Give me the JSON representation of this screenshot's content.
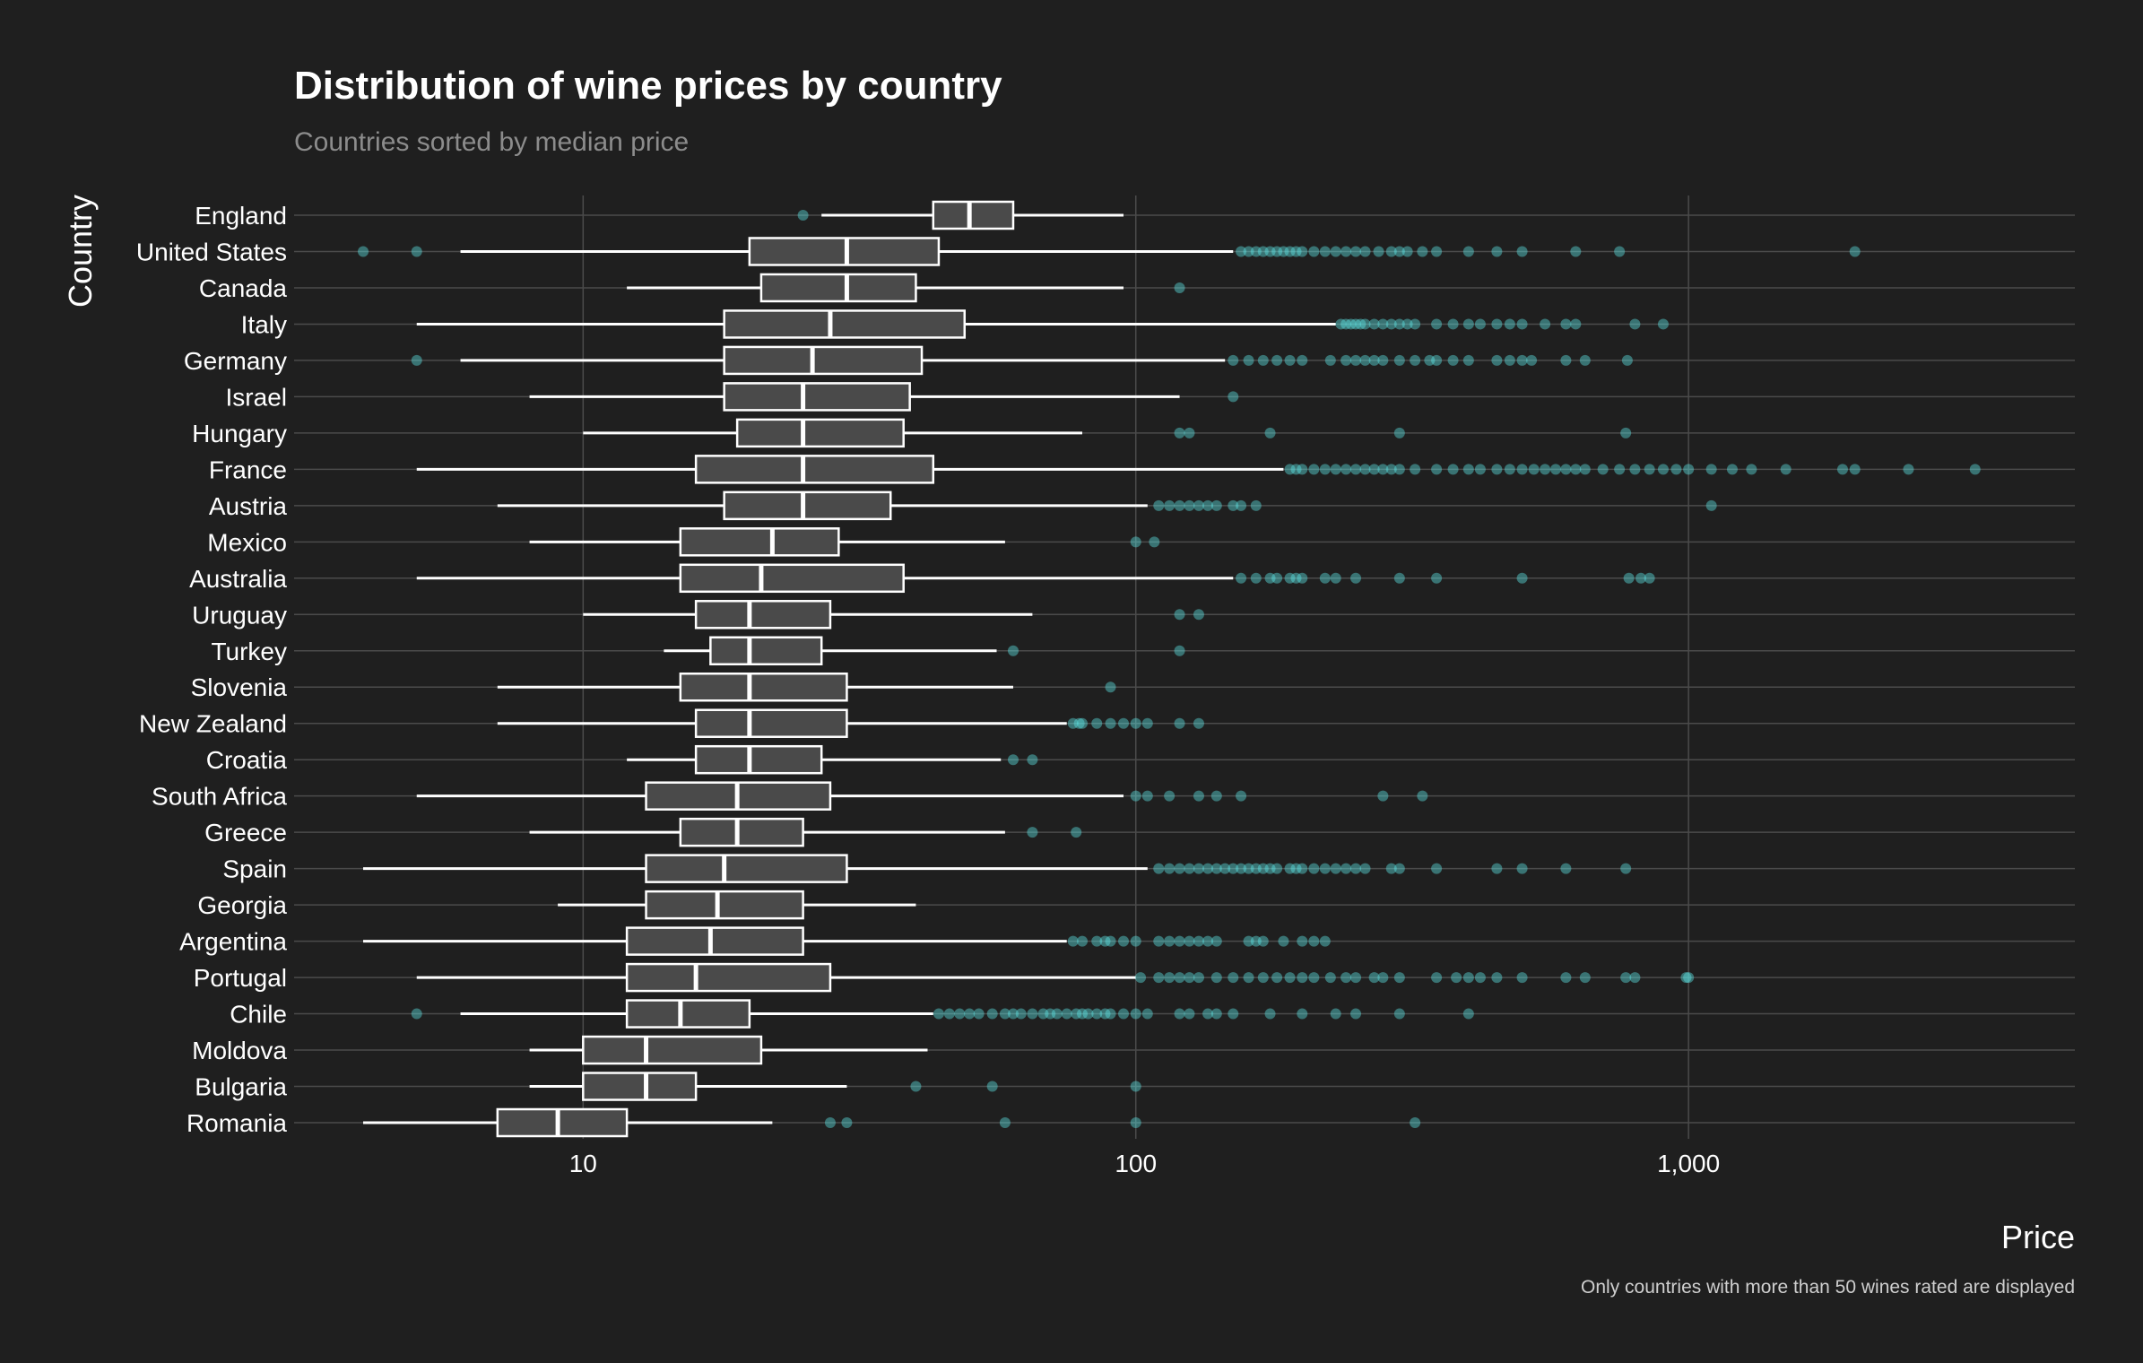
{
  "chart_data": {
    "type": "boxplot",
    "orientation": "horizontal",
    "title": "Distribution of wine prices by country",
    "subtitle": "Countries sorted by median price",
    "xlabel": "Price",
    "ylabel": "Country",
    "caption": "Only countries with more than 50 wines rated are displayed",
    "x_scale": "log10",
    "xlim": [
      3,
      5000
    ],
    "x_ticks": [
      10,
      100,
      1000
    ],
    "x_tick_labels": [
      "10",
      "100",
      "1,000"
    ],
    "grid": true,
    "colors": {
      "background": "#1f1f1f",
      "box_fill": "#4a4a4a",
      "box_stroke": "#ffffff",
      "outlier": "#5ee6e6",
      "grid": "#4b4b4b"
    },
    "series": [
      {
        "country": "England",
        "whisker_low": 27,
        "q1": 43,
        "median": 50,
        "q3": 60,
        "whisker_high": 95,
        "outliers": [
          25
        ]
      },
      {
        "country": "United States",
        "whisker_low": 6,
        "q1": 20,
        "median": 30,
        "q3": 44,
        "whisker_high": 150,
        "outliers": [
          4,
          5,
          155,
          160,
          165,
          170,
          175,
          180,
          185,
          190,
          195,
          200,
          210,
          220,
          230,
          240,
          250,
          260,
          275,
          290,
          300,
          310,
          330,
          350,
          400,
          450,
          500,
          625,
          750,
          2000
        ]
      },
      {
        "country": "Canada",
        "whisker_low": 12,
        "q1": 21,
        "median": 30,
        "q3": 40,
        "whisker_high": 95,
        "outliers": [
          120
        ]
      },
      {
        "country": "Italy",
        "whisker_low": 5,
        "q1": 18,
        "median": 28,
        "q3": 49,
        "whisker_high": 230,
        "outliers": [
          235,
          240,
          245,
          250,
          255,
          260,
          270,
          280,
          290,
          300,
          310,
          320,
          350,
          375,
          400,
          420,
          450,
          475,
          500,
          550,
          600,
          625,
          800,
          900
        ]
      },
      {
        "country": "Germany",
        "whisker_low": 6,
        "q1": 18,
        "median": 26,
        "q3": 41,
        "whisker_high": 145,
        "outliers": [
          5,
          150,
          160,
          170,
          180,
          190,
          200,
          225,
          240,
          250,
          260,
          270,
          280,
          300,
          320,
          340,
          350,
          375,
          400,
          450,
          475,
          500,
          520,
          600,
          650,
          775
        ]
      },
      {
        "country": "Israel",
        "whisker_low": 8,
        "q1": 18,
        "median": 25,
        "q3": 39,
        "whisker_high": 120,
        "outliers": [
          150
        ]
      },
      {
        "country": "Hungary",
        "whisker_low": 10,
        "q1": 19,
        "median": 25,
        "q3": 38,
        "whisker_high": 80,
        "outliers": [
          120,
          125,
          175,
          300,
          770
        ]
      },
      {
        "country": "France",
        "whisker_low": 5,
        "q1": 16,
        "median": 25,
        "q3": 43,
        "whisker_high": 185,
        "outliers": [
          190,
          195,
          200,
          210,
          220,
          230,
          240,
          250,
          260,
          270,
          280,
          290,
          300,
          320,
          350,
          375,
          400,
          420,
          450,
          475,
          500,
          525,
          550,
          575,
          600,
          625,
          650,
          700,
          750,
          800,
          850,
          900,
          950,
          1000,
          1100,
          1200,
          1300,
          1500,
          1900,
          2000,
          2500,
          3300
        ]
      },
      {
        "country": "Austria",
        "whisker_low": 7,
        "q1": 18,
        "median": 25,
        "q3": 36,
        "whisker_high": 105,
        "outliers": [
          110,
          115,
          120,
          125,
          130,
          135,
          140,
          150,
          155,
          165,
          1100
        ]
      },
      {
        "country": "Mexico",
        "whisker_low": 8,
        "q1": 15,
        "median": 22,
        "q3": 29,
        "whisker_high": 58,
        "outliers": [
          100,
          108
        ]
      },
      {
        "country": "Australia",
        "whisker_low": 5,
        "q1": 15,
        "median": 21,
        "q3": 38,
        "whisker_high": 150,
        "outliers": [
          155,
          165,
          175,
          180,
          190,
          195,
          200,
          220,
          230,
          250,
          300,
          350,
          500,
          780,
          820,
          850
        ]
      },
      {
        "country": "Uruguay",
        "whisker_low": 10,
        "q1": 16,
        "median": 20,
        "q3": 28,
        "whisker_high": 65,
        "outliers": [
          120,
          130
        ]
      },
      {
        "country": "Turkey",
        "whisker_low": 14,
        "q1": 17,
        "median": 20,
        "q3": 27,
        "whisker_high": 56,
        "outliers": [
          60,
          120
        ]
      },
      {
        "country": "Slovenia",
        "whisker_low": 7,
        "q1": 15,
        "median": 20,
        "q3": 30,
        "whisker_high": 60,
        "outliers": [
          90
        ]
      },
      {
        "country": "New Zealand",
        "whisker_low": 7,
        "q1": 16,
        "median": 20,
        "q3": 30,
        "whisker_high": 75,
        "outliers": [
          77,
          79,
          80,
          85,
          90,
          95,
          100,
          105,
          120,
          130
        ]
      },
      {
        "country": "Croatia",
        "whisker_low": 12,
        "q1": 16,
        "median": 20,
        "q3": 27,
        "whisker_high": 57,
        "outliers": [
          60,
          65
        ]
      },
      {
        "country": "South Africa",
        "whisker_low": 5,
        "q1": 13,
        "median": 19,
        "q3": 28,
        "whisker_high": 95,
        "outliers": [
          100,
          105,
          115,
          130,
          140,
          155,
          280,
          330
        ]
      },
      {
        "country": "Greece",
        "whisker_low": 8,
        "q1": 15,
        "median": 19,
        "q3": 25,
        "whisker_high": 58,
        "outliers": [
          65,
          78
        ]
      },
      {
        "country": "Spain",
        "whisker_low": 4,
        "q1": 13,
        "median": 18,
        "q3": 30,
        "whisker_high": 105,
        "outliers": [
          110,
          115,
          120,
          125,
          130,
          135,
          140,
          145,
          150,
          155,
          160,
          165,
          170,
          175,
          180,
          190,
          195,
          200,
          210,
          220,
          230,
          240,
          250,
          260,
          290,
          300,
          350,
          450,
          500,
          600,
          770
        ]
      },
      {
        "country": "Georgia",
        "whisker_low": 9,
        "q1": 13,
        "median": 17.5,
        "q3": 25,
        "whisker_high": 40,
        "outliers": []
      },
      {
        "country": "Argentina",
        "whisker_low": 4,
        "q1": 12,
        "median": 17,
        "q3": 25,
        "whisker_high": 75,
        "outliers": [
          77,
          80,
          85,
          88,
          90,
          95,
          100,
          110,
          115,
          120,
          125,
          130,
          135,
          140,
          160,
          165,
          170,
          185,
          200,
          210,
          220
        ]
      },
      {
        "country": "Portugal",
        "whisker_low": 5,
        "q1": 12,
        "median": 16,
        "q3": 28,
        "whisker_high": 100,
        "outliers": [
          102,
          110,
          115,
          120,
          125,
          130,
          140,
          150,
          160,
          170,
          180,
          190,
          200,
          210,
          225,
          240,
          250,
          270,
          280,
          300,
          350,
          380,
          400,
          420,
          450,
          500,
          600,
          650,
          770,
          800,
          990,
          1000
        ]
      },
      {
        "country": "Chile",
        "whisker_low": 6,
        "q1": 12,
        "median": 15,
        "q3": 20,
        "whisker_high": 43,
        "outliers": [
          5,
          44,
          46,
          48,
          50,
          52,
          55,
          58,
          60,
          62,
          65,
          68,
          70,
          72,
          75,
          78,
          80,
          82,
          85,
          88,
          90,
          95,
          100,
          105,
          120,
          125,
          135,
          140,
          150,
          175,
          200,
          230,
          250,
          300,
          400
        ]
      },
      {
        "country": "Moldova",
        "whisker_low": 8,
        "q1": 10,
        "median": 13,
        "q3": 21,
        "whisker_high": 42,
        "outliers": []
      },
      {
        "country": "Bulgaria",
        "whisker_low": 8,
        "q1": 10,
        "median": 13,
        "q3": 16,
        "whisker_high": 30,
        "outliers": [
          40,
          55,
          100
        ]
      },
      {
        "country": "Romania",
        "whisker_low": 4,
        "q1": 7,
        "median": 9,
        "q3": 12,
        "whisker_high": 22,
        "outliers": [
          28,
          30,
          58,
          100,
          320
        ]
      }
    ]
  }
}
